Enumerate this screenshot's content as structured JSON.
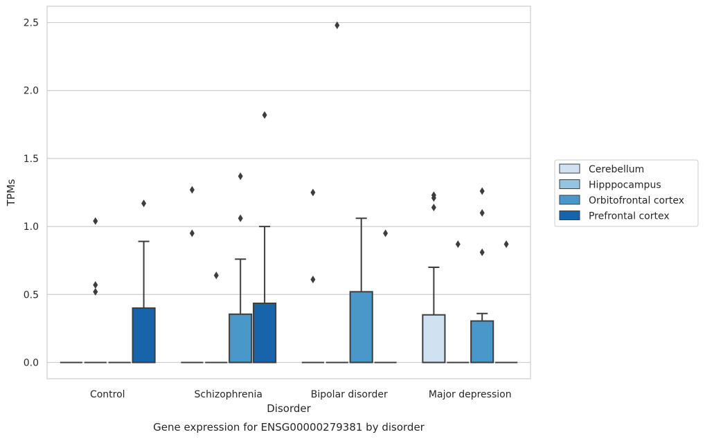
{
  "chart_data": {
    "type": "box",
    "title": "",
    "xlabel": "Disorder",
    "ylabel": "TPMs",
    "caption": "Gene expression for ENSG00000279381 by disorder",
    "categories": [
      "Control",
      "Schizophrenia",
      "Bipolar disorder",
      "Major depression"
    ],
    "ylim": [
      -0.12,
      2.62
    ],
    "yticks": [
      0.0,
      0.5,
      1.0,
      1.5,
      2.0,
      2.5
    ],
    "ytick_labels": [
      "0.0",
      "0.5",
      "1.0",
      "1.5",
      "2.0",
      "2.5"
    ],
    "grid": true,
    "legend_position": "right",
    "series": [
      {
        "name": "Cerebellum",
        "color": "#d0e1f2",
        "boxes": [
          {
            "q1": 0,
            "median": 0,
            "q3": 0,
            "whisker_low": 0,
            "whisker_high": 0,
            "outliers": []
          },
          {
            "q1": 0,
            "median": 0,
            "q3": 0,
            "whisker_low": 0,
            "whisker_high": 0,
            "outliers": [
              0.95,
              1.27
            ]
          },
          {
            "q1": 0,
            "median": 0,
            "q3": 0,
            "whisker_low": 0,
            "whisker_high": 0,
            "outliers": [
              0.61,
              1.25
            ]
          },
          {
            "q1": 0,
            "median": 0,
            "q3": 0.35,
            "whisker_low": 0,
            "whisker_high": 0.7,
            "outliers": [
              1.14,
              1.21,
              1.23
            ]
          }
        ]
      },
      {
        "name": "Hipppocampus",
        "color": "#94c4df",
        "boxes": [
          {
            "q1": 0,
            "median": 0,
            "q3": 0,
            "whisker_low": 0,
            "whisker_high": 0,
            "outliers": [
              0.52,
              0.57,
              1.04
            ]
          },
          {
            "q1": 0,
            "median": 0,
            "q3": 0,
            "whisker_low": 0,
            "whisker_high": 0,
            "outliers": [
              0.64
            ]
          },
          {
            "q1": 0,
            "median": 0,
            "q3": 0,
            "whisker_low": 0,
            "whisker_high": 0,
            "outliers": [
              2.48
            ]
          },
          {
            "q1": 0,
            "median": 0,
            "q3": 0,
            "whisker_low": 0,
            "whisker_high": 0,
            "outliers": [
              0.87
            ]
          }
        ]
      },
      {
        "name": "Orbitofrontal cortex",
        "color": "#4a98c9",
        "boxes": [
          {
            "q1": 0,
            "median": 0,
            "q3": 0,
            "whisker_low": 0,
            "whisker_high": 0,
            "outliers": []
          },
          {
            "q1": 0,
            "median": 0,
            "q3": 0.355,
            "whisker_low": 0,
            "whisker_high": 0.76,
            "outliers": [
              1.06,
              1.37
            ]
          },
          {
            "q1": 0,
            "median": 0,
            "q3": 0.52,
            "whisker_low": 0,
            "whisker_high": 1.06,
            "outliers": []
          },
          {
            "q1": 0,
            "median": 0,
            "q3": 0.305,
            "whisker_low": 0,
            "whisker_high": 0.36,
            "outliers": [
              0.81,
              1.1,
              1.26
            ]
          }
        ]
      },
      {
        "name": "Prefrontal cortex",
        "color": "#1764ab",
        "boxes": [
          {
            "q1": 0,
            "median": 0,
            "q3": 0.4,
            "whisker_low": 0,
            "whisker_high": 0.89,
            "outliers": [
              1.17
            ]
          },
          {
            "q1": 0,
            "median": 0,
            "q3": 0.435,
            "whisker_low": 0,
            "whisker_high": 1.0,
            "outliers": [
              1.82
            ]
          },
          {
            "q1": 0,
            "median": 0,
            "q3": 0,
            "whisker_low": 0,
            "whisker_high": 0,
            "outliers": [
              0.95
            ]
          },
          {
            "q1": 0,
            "median": 0,
            "q3": 0,
            "whisker_low": 0,
            "whisker_high": 0,
            "outliers": [
              0.87
            ]
          }
        ]
      }
    ]
  }
}
